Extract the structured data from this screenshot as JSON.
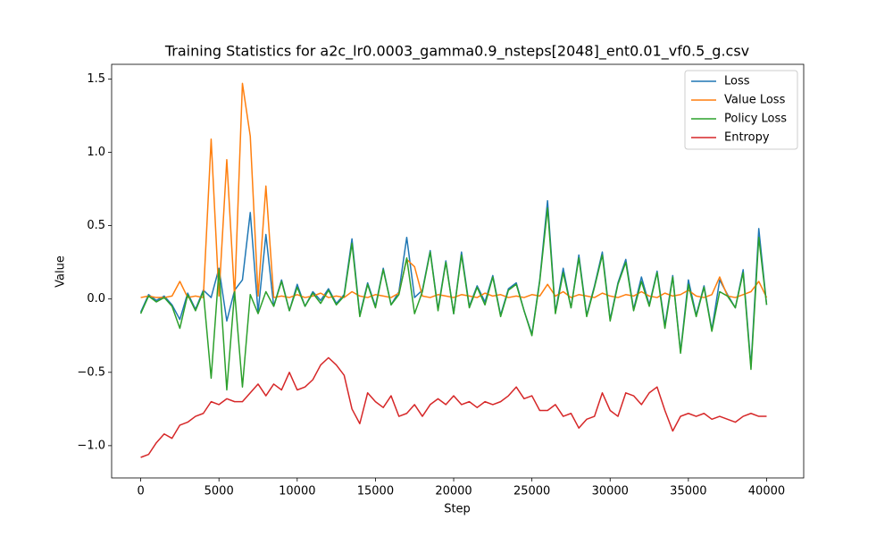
{
  "chart_data": {
    "type": "line",
    "title": "Training Statistics for a2c_lr0.0003_gamma0.9_nsteps[2048]_ent0.01_vf0.5_g.csv",
    "x_label": "Step",
    "y_label": "Value",
    "x": [
      0,
      500,
      1000,
      1500,
      2000,
      2500,
      3000,
      3500,
      4000,
      4500,
      5000,
      5500,
      6000,
      6500,
      7000,
      7500,
      8000,
      8500,
      9000,
      9500,
      10000,
      10500,
      11000,
      11500,
      12000,
      12500,
      13000,
      13500,
      14000,
      14500,
      15000,
      15500,
      16000,
      16500,
      17000,
      17500,
      18000,
      18500,
      19000,
      19500,
      20000,
      20500,
      21000,
      21500,
      22000,
      22500,
      23000,
      23500,
      24000,
      24500,
      25000,
      25500,
      26000,
      26500,
      27000,
      27500,
      28000,
      28500,
      29000,
      29500,
      30000,
      30500,
      31000,
      31500,
      32000,
      32500,
      33000,
      33500,
      34000,
      34500,
      35000,
      35500,
      36000,
      36500,
      37000,
      37500,
      38000,
      38500,
      39000,
      39500,
      40000
    ],
    "series": [
      {
        "name": "Loss",
        "color": "#1f77b4",
        "values": [
          -0.09,
          0.03,
          -0.01,
          0.02,
          -0.04,
          -0.14,
          0.04,
          -0.07,
          0.06,
          0.01,
          0.21,
          -0.15,
          0.06,
          0.13,
          0.59,
          -0.09,
          0.44,
          -0.05,
          0.13,
          -0.08,
          0.1,
          -0.05,
          0.05,
          -0.01,
          0.07,
          -0.03,
          0.03,
          0.41,
          -0.11,
          0.11,
          -0.05,
          0.21,
          -0.04,
          0.05,
          0.42,
          0.01,
          0.06,
          0.33,
          -0.07,
          0.26,
          -0.1,
          0.32,
          -0.05,
          0.09,
          -0.02,
          0.16,
          -0.11,
          0.07,
          0.11,
          -0.08,
          -0.24,
          0.13,
          0.67,
          -0.09,
          0.21,
          -0.06,
          0.3,
          -0.11,
          0.09,
          0.32,
          -0.14,
          0.11,
          0.27,
          -0.07,
          0.15,
          -0.04,
          0.19,
          -0.18,
          0.16,
          -0.36,
          0.13,
          -0.11,
          0.09,
          -0.21,
          0.13,
          0.03,
          -0.06,
          0.2,
          -0.46,
          0.48,
          -0.04
        ]
      },
      {
        "name": "Value Loss",
        "color": "#ff7f0e",
        "values": [
          0.01,
          0.02,
          0.01,
          0.01,
          0.02,
          0.12,
          0.01,
          0.02,
          0.01,
          1.09,
          0.02,
          0.95,
          0.01,
          1.47,
          1.11,
          0.02,
          0.77,
          0.01,
          0.02,
          0.01,
          0.03,
          0.01,
          0.02,
          0.04,
          0.01,
          0.02,
          0.01,
          0.05,
          0.02,
          0.01,
          0.03,
          0.02,
          0.01,
          0.04,
          0.27,
          0.22,
          0.02,
          0.01,
          0.03,
          0.02,
          0.01,
          0.03,
          0.02,
          0.01,
          0.04,
          0.02,
          0.03,
          0.01,
          0.02,
          0.01,
          0.03,
          0.02,
          0.1,
          0.02,
          0.05,
          0.01,
          0.03,
          0.02,
          0.01,
          0.04,
          0.02,
          0.01,
          0.03,
          0.02,
          0.05,
          0.02,
          0.01,
          0.04,
          0.02,
          0.03,
          0.06,
          0.02,
          0.01,
          0.03,
          0.15,
          0.02,
          0.01,
          0.03,
          0.05,
          0.12,
          0.01
        ]
      },
      {
        "name": "Policy Loss",
        "color": "#2ca02c",
        "values": [
          -0.1,
          0.02,
          -0.02,
          0.01,
          -0.05,
          -0.2,
          0.03,
          -0.08,
          0.05,
          -0.54,
          0.2,
          -0.62,
          0.05,
          -0.6,
          0.03,
          -0.1,
          0.05,
          -0.05,
          0.12,
          -0.08,
          0.08,
          -0.05,
          0.04,
          -0.03,
          0.06,
          -0.04,
          0.02,
          0.38,
          -0.12,
          0.1,
          -0.06,
          0.2,
          -0.04,
          0.03,
          0.28,
          -0.1,
          0.05,
          0.32,
          -0.08,
          0.25,
          -0.1,
          0.3,
          -0.06,
          0.08,
          -0.04,
          0.15,
          -0.12,
          0.06,
          0.1,
          -0.08,
          -0.25,
          0.12,
          0.62,
          -0.1,
          0.18,
          -0.06,
          0.28,
          -0.12,
          0.08,
          0.3,
          -0.15,
          0.1,
          0.25,
          -0.08,
          0.12,
          -0.05,
          0.18,
          -0.2,
          0.15,
          -0.37,
          0.1,
          -0.12,
          0.08,
          -0.22,
          0.05,
          0.02,
          -0.06,
          0.18,
          -0.48,
          0.42,
          -0.04
        ]
      },
      {
        "name": "Entropy",
        "color": "#d62728",
        "values": [
          -1.08,
          -1.06,
          -0.98,
          -0.92,
          -0.95,
          -0.86,
          -0.84,
          -0.8,
          -0.78,
          -0.7,
          -0.72,
          -0.68,
          -0.7,
          -0.7,
          -0.64,
          -0.58,
          -0.66,
          -0.58,
          -0.62,
          -0.5,
          -0.62,
          -0.6,
          -0.55,
          -0.45,
          -0.4,
          -0.45,
          -0.52,
          -0.75,
          -0.85,
          -0.64,
          -0.7,
          -0.74,
          -0.66,
          -0.8,
          -0.78,
          -0.72,
          -0.8,
          -0.72,
          -0.68,
          -0.72,
          -0.66,
          -0.72,
          -0.7,
          -0.74,
          -0.7,
          -0.72,
          -0.7,
          -0.66,
          -0.6,
          -0.68,
          -0.66,
          -0.76,
          -0.76,
          -0.72,
          -0.8,
          -0.78,
          -0.88,
          -0.82,
          -0.8,
          -0.64,
          -0.76,
          -0.8,
          -0.64,
          -0.66,
          -0.72,
          -0.64,
          -0.6,
          -0.76,
          -0.9,
          -0.8,
          -0.78,
          -0.8,
          -0.78,
          -0.82,
          -0.8,
          -0.82,
          -0.84,
          -0.8,
          -0.78,
          -0.8,
          -0.8
        ]
      }
    ],
    "xlim": [
      -1860,
      42370
    ],
    "ylim": [
      -1.22,
      1.6
    ],
    "xticks": [
      0,
      5000,
      10000,
      15000,
      20000,
      25000,
      30000,
      35000,
      40000
    ],
    "yticks": [
      {
        "value": -1.0,
        "label": "−1.0"
      },
      {
        "value": -0.5,
        "label": "−0.5"
      },
      {
        "value": 0.0,
        "label": "0.0"
      },
      0.5,
      {
        "value": 1.0,
        "label": "1.0"
      },
      1.5
    ],
    "legend": "upper right"
  }
}
